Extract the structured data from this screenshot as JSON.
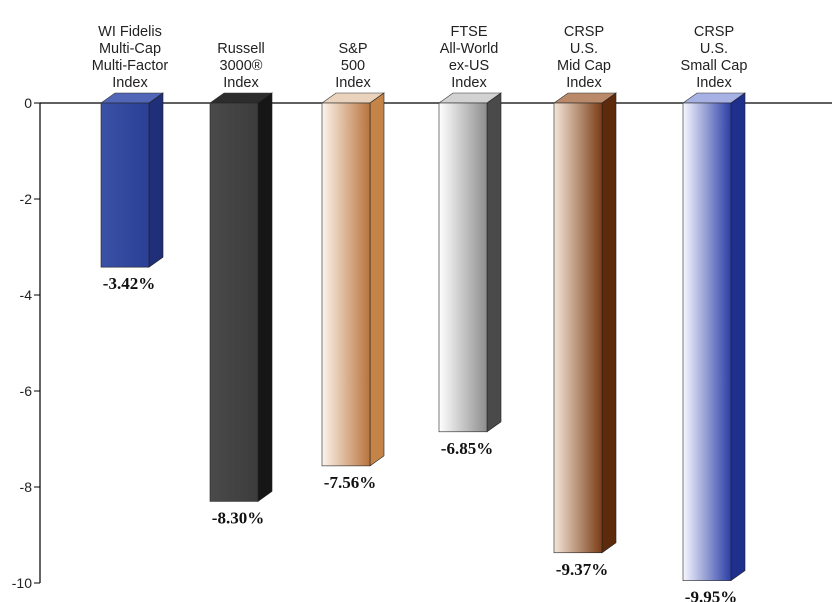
{
  "chart_data": {
    "type": "bar",
    "style": "3d-column",
    "categories": [
      [
        "WI Fidelis",
        "Multi-Cap",
        "Multi-Factor",
        "Index"
      ],
      [
        "Russell",
        "3000®",
        "Index"
      ],
      [
        "S&P",
        "500",
        "Index"
      ],
      [
        "FTSE",
        "All-World",
        "ex-US",
        "Index"
      ],
      [
        "CRSP",
        "U.S.",
        "Mid Cap",
        "Index"
      ],
      [
        "CRSP",
        "U.S.",
        "Small Cap",
        "Index"
      ]
    ],
    "values": [
      -3.42,
      -8.3,
      -7.56,
      -6.85,
      -9.37,
      -9.95
    ],
    "value_labels": [
      "-3.42%",
      "-8.30%",
      "-7.56%",
      "-6.85%",
      "-9.37%",
      "-9.95%"
    ],
    "ylim": [
      -10,
      0
    ],
    "yticks": [
      0,
      -2,
      -4,
      -6,
      -8,
      -10
    ],
    "ytick_labels": [
      "0",
      "-2",
      "-4",
      "-6",
      "-8",
      "-10"
    ],
    "grid": false,
    "category_axis_position": "top",
    "bar_colors": [
      {
        "front_from": "#3a52a6",
        "front_to": "#2a3f95",
        "side": "#1f2f78",
        "top": "#5266b8"
      },
      {
        "front_from": "#4a4a4a",
        "front_to": "#3c3c3c",
        "side": "#161616",
        "top": "#2c2c2c"
      },
      {
        "front_from": "#fdf4ec",
        "front_to": "#b8733c",
        "side": "#c48447",
        "top": "#ead3bd"
      },
      {
        "front_from": "#ffffff",
        "front_to": "#8d8d8d",
        "side": "#4a4a4a",
        "top": "#d2d2d2"
      },
      {
        "front_from": "#f4e6d8",
        "front_to": "#7a3d16",
        "side": "#5e2a0c",
        "top": "#b9896a"
      },
      {
        "front_from": "#f7f8ff",
        "front_to": "#2b3ea6",
        "side": "#1e2f8c",
        "top": "#a7b1e4"
      }
    ]
  }
}
